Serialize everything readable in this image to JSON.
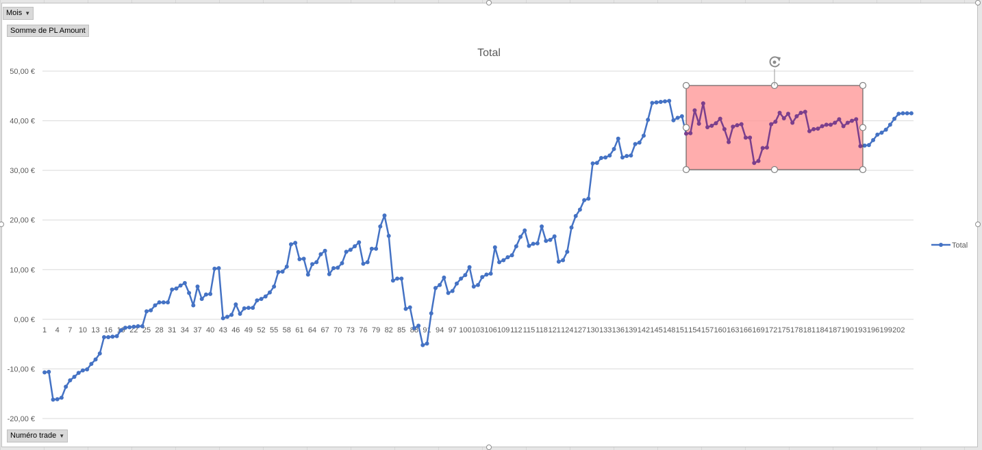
{
  "filters": {
    "mois_label": "Mois",
    "value_field_label": "Somme de PL Amount",
    "axis_field_label": "Numéro trade"
  },
  "colors": {
    "series": "#4472c4",
    "highlight_fill": "#ff9999",
    "highlight_line": "#7b3f8c"
  },
  "icons": {
    "dropdown": "chevron-down-icon",
    "rotate": "rotate-icon"
  },
  "chart_data": {
    "type": "line",
    "title": "Total",
    "xlabel": "",
    "ylabel": "",
    "ylim": [
      -20,
      50
    ],
    "yticks": [
      "50,00 €",
      "40,00 €",
      "30,00 €",
      "20,00 €",
      "10,00 €",
      "0,00 €",
      "-10,00 €",
      "-20,00 €"
    ],
    "ytick_values": [
      50,
      40,
      30,
      20,
      10,
      0,
      -10,
      -20
    ],
    "x_tick_labels": [
      "1",
      "4",
      "7",
      "10",
      "13",
      "16",
      "19",
      "22",
      "25",
      "28",
      "31",
      "34",
      "37",
      "40",
      "43",
      "46",
      "49",
      "52",
      "55",
      "58",
      "61",
      "64",
      "67",
      "70",
      "73",
      "76",
      "79",
      "82",
      "85",
      "88",
      "91",
      "94",
      "97",
      "100",
      "103",
      "106",
      "109",
      "112",
      "115",
      "118",
      "121",
      "124",
      "127",
      "130",
      "133",
      "136",
      "139",
      "142",
      "145",
      "148",
      "151",
      "154",
      "157",
      "160",
      "163",
      "166",
      "169",
      "172",
      "175",
      "178",
      "181",
      "184",
      "187",
      "190",
      "193",
      "196",
      "199",
      "202"
    ],
    "x_tick_values": [
      1,
      4,
      7,
      10,
      13,
      16,
      19,
      22,
      25,
      28,
      31,
      34,
      37,
      40,
      43,
      46,
      49,
      52,
      55,
      58,
      61,
      64,
      67,
      70,
      73,
      76,
      79,
      82,
      85,
      88,
      91,
      94,
      97,
      100,
      103,
      106,
      109,
      112,
      115,
      118,
      121,
      124,
      127,
      130,
      133,
      136,
      139,
      142,
      145,
      148,
      151,
      154,
      157,
      160,
      163,
      166,
      169,
      172,
      175,
      178,
      181,
      184,
      187,
      190,
      193,
      196,
      199,
      202
    ],
    "legend": {
      "entries": [
        "Total"
      ],
      "position": "right"
    },
    "grid": true,
    "x": [
      1,
      2,
      3,
      4,
      5,
      6,
      7,
      8,
      9,
      10,
      11,
      12,
      13,
      14,
      15,
      16,
      17,
      18,
      19,
      20,
      21,
      22,
      23,
      24,
      25,
      26,
      27,
      28,
      29,
      30,
      31,
      32,
      33,
      34,
      35,
      36,
      37,
      38,
      39,
      40,
      41,
      42,
      43,
      44,
      45,
      46,
      47,
      48,
      49,
      50,
      51,
      52,
      53,
      54,
      55,
      56,
      57,
      58,
      59,
      60,
      61,
      62,
      63,
      64,
      65,
      66,
      67,
      68,
      69,
      70,
      71,
      72,
      73,
      74,
      75,
      76,
      77,
      78,
      79,
      80,
      81,
      82,
      83,
      84,
      85,
      86,
      87,
      88,
      89,
      90,
      91,
      92,
      93,
      94,
      95,
      96,
      97,
      98,
      99,
      100,
      101,
      102,
      103,
      104,
      105,
      106,
      107,
      108,
      109,
      110,
      111,
      112,
      113,
      114,
      115,
      116,
      117,
      118,
      119,
      120,
      121,
      122,
      123,
      124,
      125,
      126,
      127,
      128,
      129,
      130,
      131,
      132,
      133,
      134,
      135,
      136,
      137,
      138,
      139,
      140,
      141,
      142,
      143,
      144,
      145,
      146,
      147,
      148,
      149,
      150,
      151,
      152,
      153,
      154,
      155,
      156,
      157,
      158,
      159,
      160,
      161,
      162,
      163,
      164,
      165,
      166,
      167,
      168,
      169,
      170,
      171,
      172,
      173,
      174,
      175,
      176,
      177,
      178,
      179,
      180,
      181,
      182,
      183,
      184,
      185,
      186,
      187,
      188,
      189,
      190,
      191,
      192,
      193,
      194,
      195,
      196,
      197,
      198,
      199,
      200,
      201,
      202,
      203,
      204,
      205
    ],
    "series": [
      {
        "name": "Total",
        "values": [
          -10.7,
          -10.6,
          -16.2,
          -16.1,
          -15.8,
          -13.6,
          -12.3,
          -11.6,
          -10.8,
          -10.3,
          -10.1,
          -9.0,
          -8.1,
          -6.9,
          -3.6,
          -3.6,
          -3.5,
          -3.4,
          -2.2,
          -1.7,
          -1.6,
          -1.5,
          -1.4,
          -1.4,
          1.6,
          1.8,
          2.8,
          3.4,
          3.4,
          3.4,
          6.0,
          6.2,
          6.8,
          7.3,
          5.3,
          2.8,
          6.6,
          4.1,
          5.0,
          5.1,
          10.2,
          10.3,
          0.2,
          0.5,
          0.9,
          3.0,
          1.1,
          2.2,
          2.3,
          2.3,
          3.8,
          4.1,
          4.6,
          5.4,
          6.6,
          9.5,
          9.6,
          10.6,
          15.1,
          15.4,
          12.1,
          12.2,
          9.0,
          11.1,
          11.5,
          13.1,
          13.8,
          9.1,
          10.3,
          10.4,
          11.3,
          13.6,
          14.0,
          14.7,
          15.5,
          11.2,
          11.5,
          14.2,
          14.2,
          18.7,
          20.9,
          16.8,
          7.8,
          8.2,
          8.2,
          2.1,
          2.4,
          -1.8,
          -1.3,
          -5.2,
          -4.9,
          1.2,
          6.3,
          6.9,
          8.4,
          5.3,
          5.7,
          7.2,
          8.2,
          8.9,
          10.5,
          6.6,
          6.9,
          8.5,
          9.0,
          9.2,
          14.5,
          11.5,
          11.9,
          12.5,
          12.9,
          14.7,
          16.6,
          17.9,
          14.8,
          15.2,
          15.3,
          18.7,
          15.8,
          16.0,
          16.7,
          11.6,
          11.9,
          13.6,
          18.5,
          20.8,
          22.1,
          24.0,
          24.3,
          31.4,
          31.5,
          32.5,
          32.6,
          33.0,
          34.3,
          36.4,
          32.6,
          32.9,
          33.0,
          35.3,
          35.6,
          37.0,
          40.2,
          43.6,
          43.7,
          43.8,
          43.9,
          44.0,
          40.1,
          40.6,
          40.9,
          37.4,
          37.5,
          42.1,
          39.4,
          43.5,
          38.7,
          39.0,
          39.5,
          40.4,
          38.3,
          35.7,
          38.8,
          39.1,
          39.3,
          36.6,
          36.6,
          31.5,
          31.9,
          34.5,
          34.6,
          39.3,
          39.8,
          41.6,
          40.5,
          41.4,
          39.6,
          40.9,
          41.6,
          41.8,
          37.9,
          38.3,
          38.4,
          38.9,
          39.2,
          39.2,
          39.6,
          40.3,
          38.9,
          39.6,
          40.0,
          40.3,
          34.9,
          35.0,
          35.1,
          36.1,
          37.2,
          37.6,
          38.2,
          39.2,
          40.4,
          41.4,
          41.5,
          41.5,
          41.5
        ]
      }
    ]
  }
}
